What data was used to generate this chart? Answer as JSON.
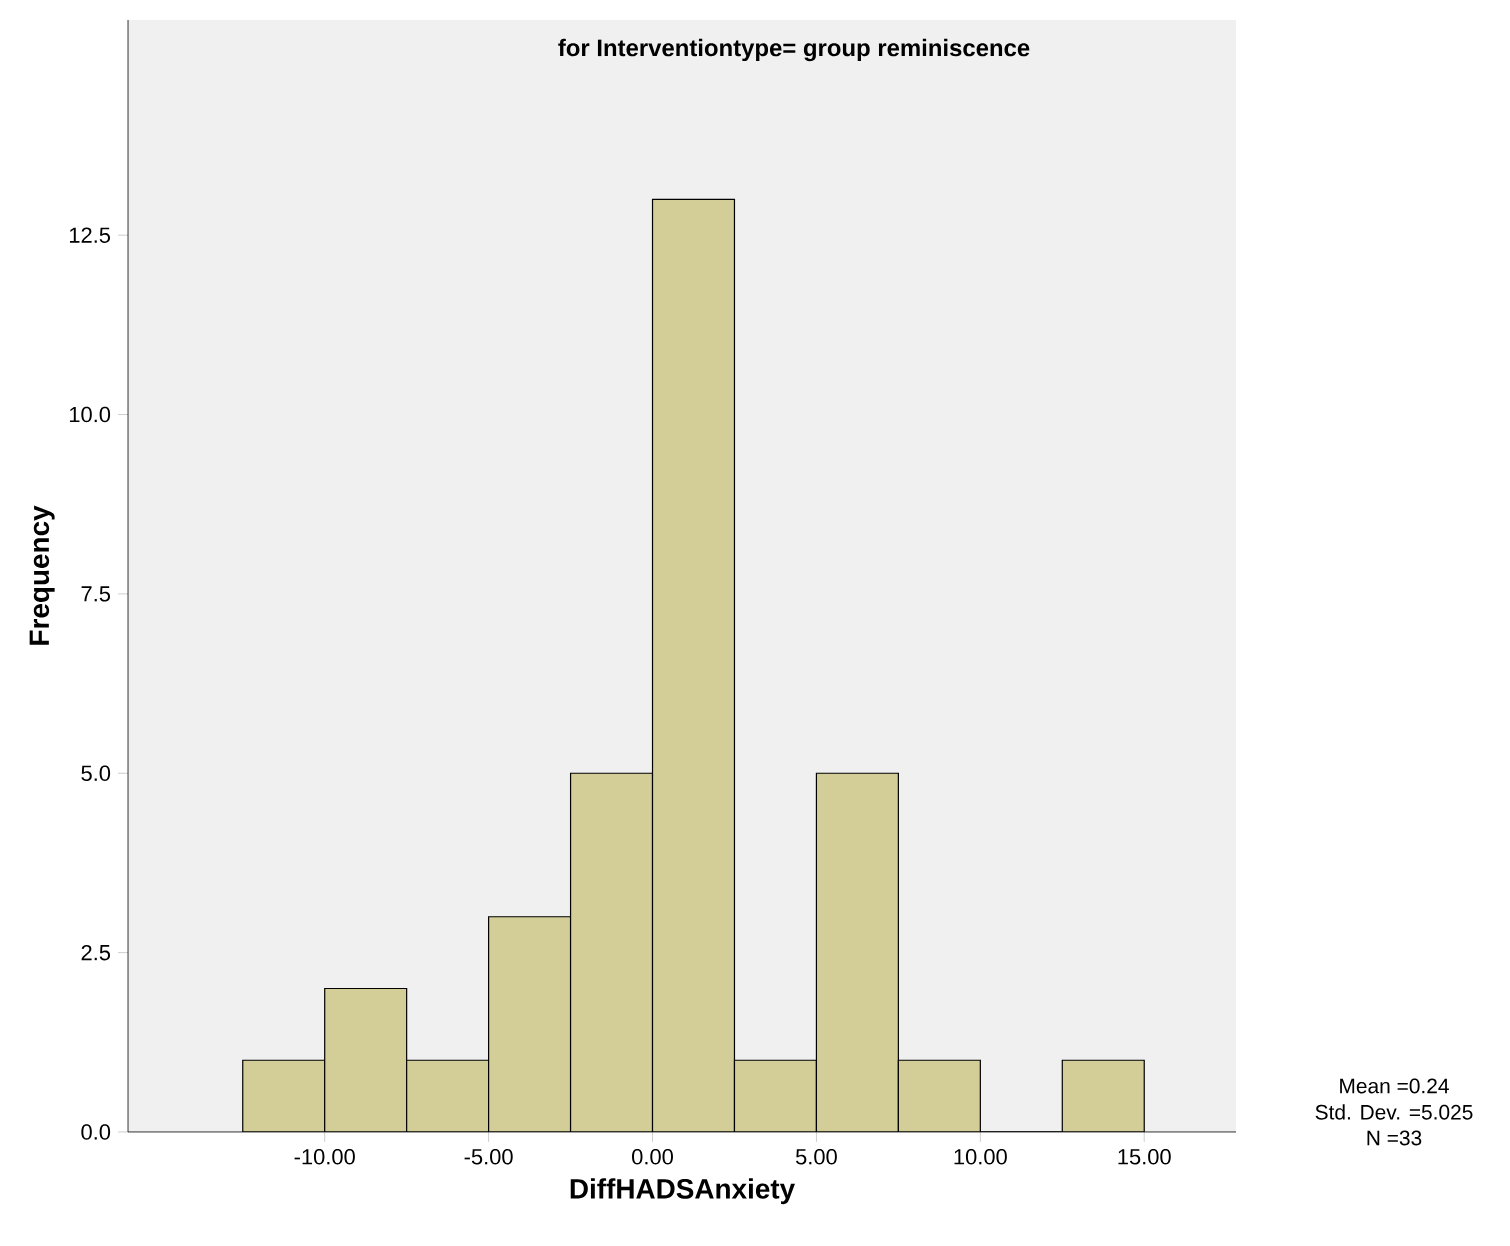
{
  "chart_data": {
    "type": "histogram",
    "title": "for Interventiontype= group reminiscence",
    "xlabel": "DiffHADSAnxiety",
    "ylabel": "Frequency",
    "bins": [
      -12.5,
      -10,
      -7.5,
      -5,
      -2.5,
      0,
      2.5,
      5,
      7.5,
      10,
      12.5,
      15
    ],
    "values": [
      1,
      2,
      1,
      3,
      5,
      13,
      1,
      5,
      1,
      0,
      1
    ],
    "color": "#d3ce97",
    "xlim": [
      -16,
      17.8
    ],
    "ylim": [
      0,
      15.5
    ],
    "xticks": [
      {
        "value": -10,
        "label": "-10.00"
      },
      {
        "value": -5,
        "label": "-5.00"
      },
      {
        "value": 0,
        "label": "0.00"
      },
      {
        "value": 5,
        "label": "5.00"
      },
      {
        "value": 10,
        "label": "10.00"
      },
      {
        "value": 15,
        "label": "15.00"
      }
    ],
    "yticks": [
      {
        "value": 0,
        "label": "0.0"
      },
      {
        "value": 2.5,
        "label": "2.5"
      },
      {
        "value": 5,
        "label": "5.0"
      },
      {
        "value": 7.5,
        "label": "7.5"
      },
      {
        "value": 10,
        "label": "10.0"
      },
      {
        "value": 12.5,
        "label": "12.5"
      }
    ],
    "annotations": [
      "Mean =0.24",
      "Std. Dev. =5.025",
      "N =33"
    ]
  }
}
